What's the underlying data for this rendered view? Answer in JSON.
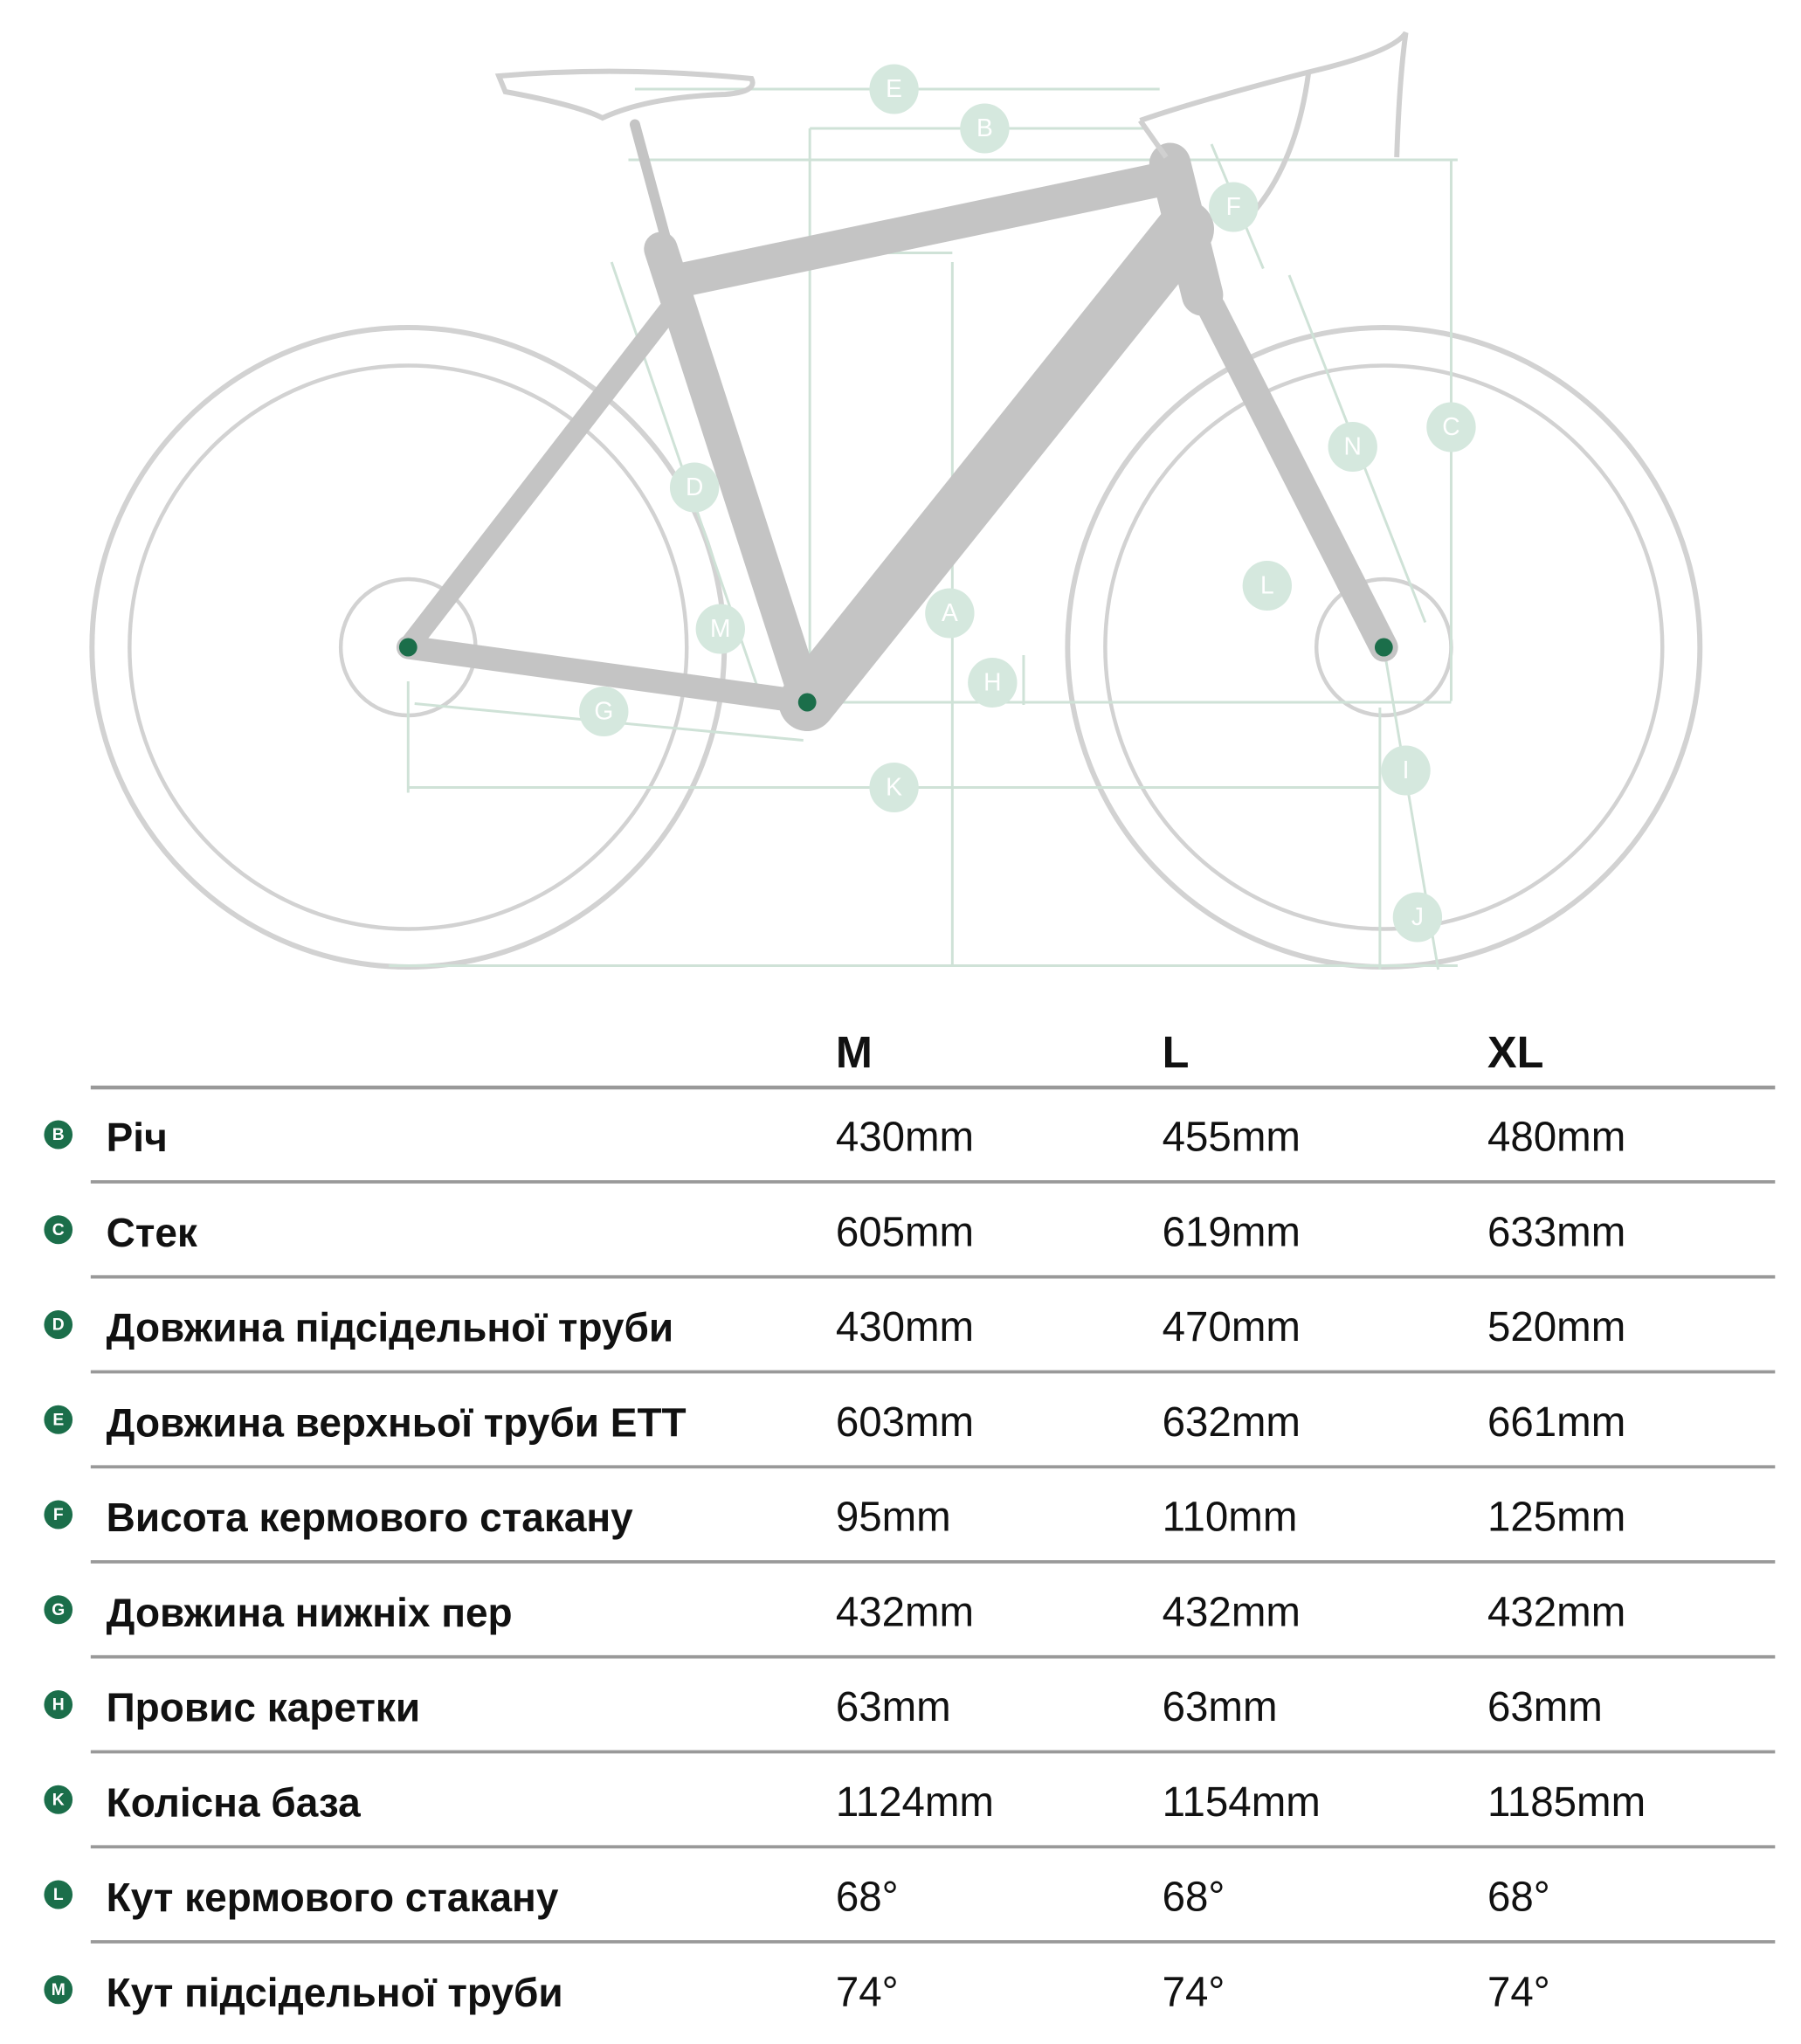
{
  "diagram": {
    "labels": [
      "E",
      "B",
      "F",
      "C",
      "N",
      "D",
      "A",
      "L",
      "M",
      "H",
      "G",
      "K",
      "I",
      "J"
    ]
  },
  "table": {
    "header": [
      "M",
      "L",
      "XL"
    ],
    "rows": [
      {
        "key": "B",
        "label": "Річ",
        "values": [
          "430mm",
          "455mm",
          "480mm"
        ]
      },
      {
        "key": "C",
        "label": "Стек",
        "values": [
          "605mm",
          "619mm",
          "633mm"
        ]
      },
      {
        "key": "D",
        "label": "Довжина підсідельної труби",
        "values": [
          "430mm",
          "470mm",
          "520mm"
        ]
      },
      {
        "key": "E",
        "label": "Довжина верхньої труби ETT",
        "values": [
          "603mm",
          "632mm",
          "661mm"
        ]
      },
      {
        "key": "F",
        "label": "Висота кермового стакану",
        "values": [
          "95mm",
          "110mm",
          "125mm"
        ]
      },
      {
        "key": "G",
        "label": "Довжина нижніх пер",
        "values": [
          "432mm",
          "432mm",
          "432mm"
        ]
      },
      {
        "key": "H",
        "label": "Провис каретки",
        "values": [
          "63mm",
          "63mm",
          "63mm"
        ]
      },
      {
        "key": "K",
        "label": "Колісна база",
        "values": [
          "1124mm",
          "1154mm",
          "1185mm"
        ]
      },
      {
        "key": "L",
        "label": "Кут кермового стакану",
        "values": [
          "68°",
          "68°",
          "68°"
        ]
      },
      {
        "key": "M",
        "label": "Кут підсідельної труби",
        "values": [
          "74°",
          "74°",
          "74°"
        ]
      }
    ]
  }
}
